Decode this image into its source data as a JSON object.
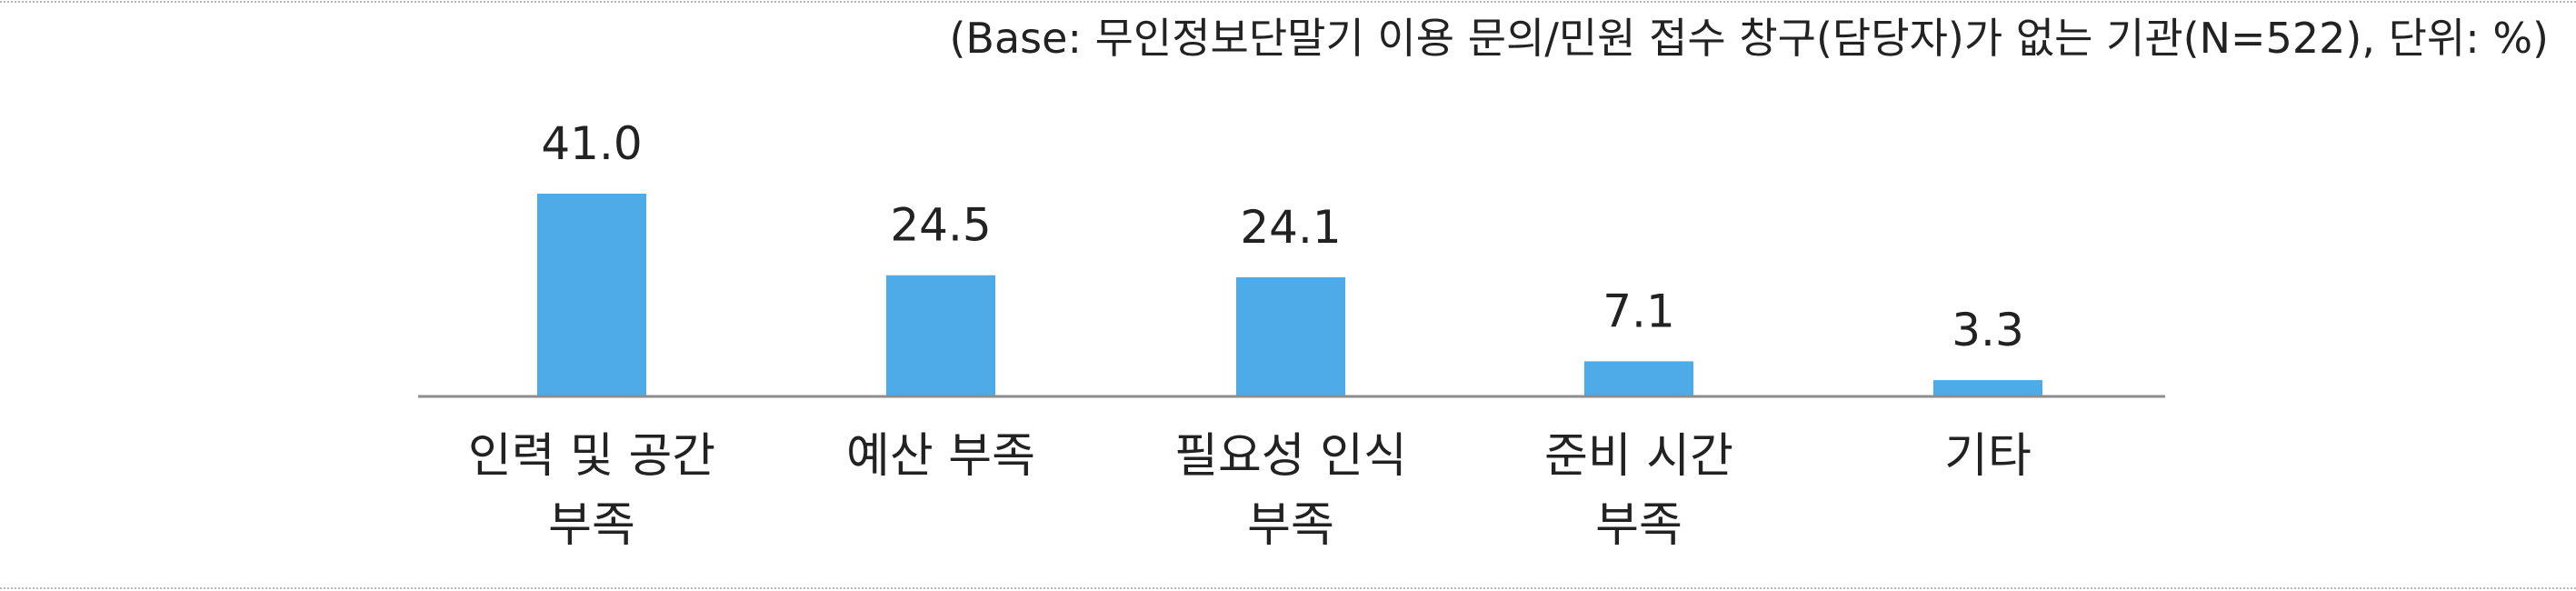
{
  "note": "(Base: 무인정보단말기 이용 문의/민원 접수 창구(담당자)가 없는 기관(N=522), 단위: %)",
  "chart_data": {
    "type": "bar",
    "categories": [
      [
        "인력 및 공간",
        "부족"
      ],
      [
        "예산 부족"
      ],
      [
        "필요성 인식",
        "부족"
      ],
      [
        "준비 시간",
        "부족"
      ],
      [
        "기타"
      ]
    ],
    "values": [
      41.0,
      24.5,
      24.1,
      7.1,
      3.3
    ],
    "value_labels": [
      "41.0",
      "24.5",
      "24.1",
      "7.1",
      "3.3"
    ],
    "bar_color": "#4fabe8",
    "axis_color": "#8c8c8c",
    "grid": false,
    "ylim": [
      0,
      41.0
    ]
  }
}
